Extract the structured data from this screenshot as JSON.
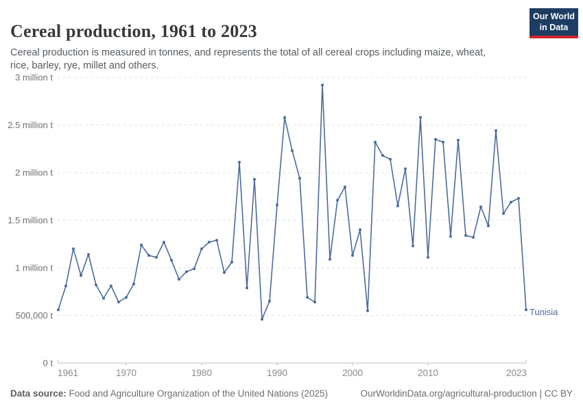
{
  "header": {
    "title": "Cereal production, 1961 to 2023",
    "subtitle": "Cereal production is measured in tonnes, and represents the total of all cereal crops including maize, wheat, rice, barley, rye, millet and others.",
    "logo": {
      "line1": "Our World",
      "line2": "in Data"
    }
  },
  "chart_data": {
    "type": "line",
    "title": "Cereal production, 1961 to 2023",
    "unit": "tonnes",
    "series_label": "Tunisia",
    "line_color": "#4C6A9C",
    "grid": "horizontal-dashed",
    "legend_position": "end-of-line",
    "xlim": [
      1961,
      2023
    ],
    "ylim": [
      0,
      3000000
    ],
    "x": [
      1961,
      1962,
      1963,
      1964,
      1965,
      1966,
      1967,
      1968,
      1969,
      1970,
      1971,
      1972,
      1973,
      1974,
      1975,
      1976,
      1977,
      1978,
      1979,
      1980,
      1981,
      1982,
      1983,
      1984,
      1985,
      1986,
      1987,
      1988,
      1989,
      1990,
      1991,
      1992,
      1993,
      1994,
      1995,
      1996,
      1997,
      1998,
      1999,
      2000,
      2001,
      2002,
      2003,
      2004,
      2005,
      2006,
      2007,
      2008,
      2009,
      2010,
      2011,
      2012,
      2013,
      2014,
      2015,
      2016,
      2017,
      2018,
      2019,
      2020,
      2021,
      2022,
      2023
    ],
    "values": [
      560000,
      810000,
      1200000,
      920000,
      1140000,
      820000,
      680000,
      810000,
      640000,
      690000,
      830000,
      1240000,
      1130000,
      1110000,
      1270000,
      1080000,
      880000,
      960000,
      990000,
      1200000,
      1270000,
      1290000,
      950000,
      1060000,
      2110000,
      790000,
      1930000,
      460000,
      650000,
      1660000,
      2580000,
      2230000,
      1940000,
      690000,
      640000,
      2920000,
      1090000,
      1710000,
      1850000,
      1130000,
      1400000,
      550000,
      2320000,
      2180000,
      2140000,
      1650000,
      2040000,
      1230000,
      2580000,
      1110000,
      2350000,
      2320000,
      1330000,
      2340000,
      1340000,
      1320000,
      1640000,
      1440000,
      2440000,
      1570000,
      1690000,
      1730000,
      560000
    ],
    "yticks": [
      {
        "value": 0,
        "label": "0 t"
      },
      {
        "value": 500000,
        "label": "500,000 t"
      },
      {
        "value": 1000000,
        "label": "1 million t"
      },
      {
        "value": 1500000,
        "label": "1.5 million t"
      },
      {
        "value": 2000000,
        "label": "2 million t"
      },
      {
        "value": 2500000,
        "label": "2.5 million t"
      },
      {
        "value": 3000000,
        "label": "3 million t"
      }
    ],
    "xticks": [
      {
        "value": 1961,
        "label": "1961",
        "anchor": "start",
        "tick": false
      },
      {
        "value": 1970,
        "label": "1970",
        "anchor": "middle",
        "tick": true
      },
      {
        "value": 1980,
        "label": "1980",
        "anchor": "middle",
        "tick": true
      },
      {
        "value": 1990,
        "label": "1990",
        "anchor": "middle",
        "tick": true
      },
      {
        "value": 2000,
        "label": "2000",
        "anchor": "middle",
        "tick": true
      },
      {
        "value": 2010,
        "label": "2010",
        "anchor": "middle",
        "tick": true
      },
      {
        "value": 2023,
        "label": "2023",
        "anchor": "end",
        "tick": false
      }
    ]
  },
  "footer": {
    "datasource_label": "Data source:",
    "datasource_text": " Food and Agriculture Organization of the United Nations (2025)",
    "link_text": "OurWorldinData.org/agricultural-production | CC BY"
  },
  "colors": {
    "series_blue": "#4C6A9C",
    "logo_navy": "#1d3d63",
    "logo_red": "#cf242c"
  }
}
